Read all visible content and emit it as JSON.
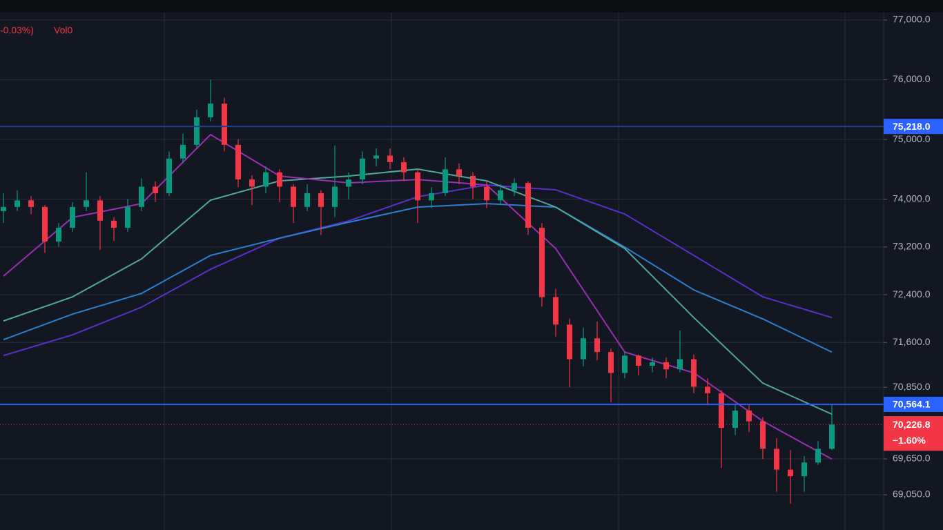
{
  "chart_data": {
    "type": "candlestick",
    "status_text": "-0.03%)",
    "volume_label": "Vol0",
    "up_color": "#089981",
    "down_color": "#f23645",
    "grid": true,
    "ylim": [
      68460,
      77335
    ],
    "yticks": [
      {
        "value": 77000,
        "label": "77,000.0"
      },
      {
        "value": 76000,
        "label": "76,000.0"
      },
      {
        "value": 75000,
        "label": "75,000.0"
      },
      {
        "value": 74000,
        "label": "74,000.0"
      },
      {
        "value": 73200,
        "label": "73,200.0"
      },
      {
        "value": 72400,
        "label": "72,400.0"
      },
      {
        "value": 71600,
        "label": "71,600.0"
      },
      {
        "value": 70850,
        "label": "70,850.0"
      },
      {
        "value": 69650,
        "label": "69,650.0"
      },
      {
        "value": 69050,
        "label": "69,050.0"
      }
    ],
    "candles": {
      "open": [
        73800,
        73870,
        73980,
        73870,
        73290,
        73520,
        73870,
        73980,
        73640,
        73520,
        73870,
        74210,
        74100,
        74680,
        74910,
        75370,
        75600,
        74910,
        74330,
        74210,
        74450,
        74210,
        73870,
        74100,
        73870,
        74210,
        74330,
        74680,
        74730,
        74620,
        74450,
        73980,
        74100,
        74500,
        74390,
        74210,
        73980,
        74150,
        74270,
        73520,
        72360,
        71900,
        71320,
        71670,
        71440,
        71090,
        71380,
        71210,
        71270,
        71150,
        71320,
        70860,
        70750,
        70170,
        70460,
        70280,
        69820,
        69470,
        69360,
        69590,
        69820
      ],
      "high": [
        74100,
        74150,
        74050,
        73900,
        73600,
        73950,
        74450,
        74050,
        73700,
        74000,
        74350,
        74300,
        74800,
        75100,
        75500,
        76000,
        75700,
        75000,
        74400,
        74550,
        74500,
        74250,
        74250,
        74150,
        74900,
        74450,
        74800,
        74850,
        74850,
        74700,
        74500,
        74200,
        74700,
        74600,
        74450,
        74300,
        74250,
        74350,
        74300,
        73600,
        72500,
        72000,
        71850,
        71950,
        71500,
        71450,
        71400,
        71350,
        71350,
        71800,
        71400,
        71000,
        70800,
        70550,
        70550,
        70350,
        70000,
        69800,
        69700,
        69950,
        70560
      ],
      "low": [
        73600,
        73800,
        73750,
        73100,
        73200,
        73450,
        73800,
        73150,
        73300,
        73450,
        73800,
        73950,
        74050,
        74600,
        74850,
        75300,
        74800,
        74200,
        73900,
        74100,
        73950,
        73600,
        73800,
        73400,
        73700,
        74000,
        74250,
        74550,
        74500,
        74300,
        73600,
        73850,
        74050,
        74250,
        74000,
        73850,
        73900,
        74050,
        73400,
        72200,
        71700,
        70850,
        71200,
        71300,
        70600,
        71000,
        71050,
        71100,
        71000,
        71100,
        70750,
        70550,
        69500,
        70050,
        70100,
        69650,
        69100,
        68900,
        69100,
        69550,
        69800
      ],
      "close": [
        73870,
        73980,
        73870,
        73290,
        73520,
        73870,
        73980,
        73640,
        73520,
        73870,
        74210,
        74100,
        74680,
        74910,
        75370,
        75600,
        74910,
        74330,
        74210,
        74450,
        74210,
        73870,
        74100,
        73870,
        74210,
        74330,
        74680,
        74730,
        74620,
        74450,
        73980,
        74100,
        74500,
        74390,
        74210,
        73980,
        74150,
        74270,
        73520,
        72360,
        71900,
        71320,
        71670,
        71440,
        71090,
        71380,
        71210,
        71270,
        71150,
        71320,
        70860,
        70750,
        70170,
        70460,
        70280,
        69820,
        69470,
        69360,
        69590,
        69820,
        70226.8
      ]
    },
    "moving_averages": [
      {
        "color": "#5b2fc9",
        "x": [
          0,
          5,
          10,
          15,
          20,
          25,
          30,
          35,
          40,
          45,
          50,
          55,
          60
        ],
        "values": [
          71381,
          71728,
          72191,
          72826,
          73347,
          73636,
          74040,
          74237,
          74156,
          73751,
          73058,
          72364,
          72017
        ]
      },
      {
        "color": "#2a7fd0",
        "x": [
          0,
          5,
          10,
          15,
          20,
          25,
          30,
          35,
          40,
          45,
          50,
          55,
          60
        ],
        "values": [
          71647,
          72075,
          72422,
          73058,
          73347,
          73613,
          73867,
          73925,
          73867,
          73196,
          72480,
          71994,
          71439
        ]
      },
      {
        "color": "#4fa69c",
        "x": [
          0,
          5,
          10,
          15,
          20,
          25,
          30,
          35,
          40,
          45,
          50,
          55,
          60
        ],
        "values": [
          71960,
          72364,
          73000,
          73983,
          74306,
          74387,
          74503,
          74306,
          73867,
          73173,
          72017,
          70919,
          70399
        ]
      },
      {
        "color": "#9b2fb0",
        "x": [
          0,
          5,
          10,
          15,
          20,
          25,
          30,
          35,
          40,
          45,
          50,
          55,
          60
        ],
        "values": [
          72711,
          73694,
          73925,
          75081,
          74387,
          74272,
          74329,
          74237,
          73173,
          71439,
          71092,
          70283,
          69647
        ]
      }
    ],
    "price_lines": [
      {
        "value": 75218.0,
        "label": "75,218.0",
        "line_color": "#1f3d8f",
        "box_color": "#2962ff"
      },
      {
        "value": 70564.1,
        "label": "70,564.1",
        "line_color": "#2962ff",
        "box_color": "#2962ff"
      }
    ],
    "last_price": {
      "value": 70226.8,
      "label": "70,226.8",
      "change": -1.6,
      "change_label": "−1.60%",
      "color": "#f23645"
    }
  }
}
